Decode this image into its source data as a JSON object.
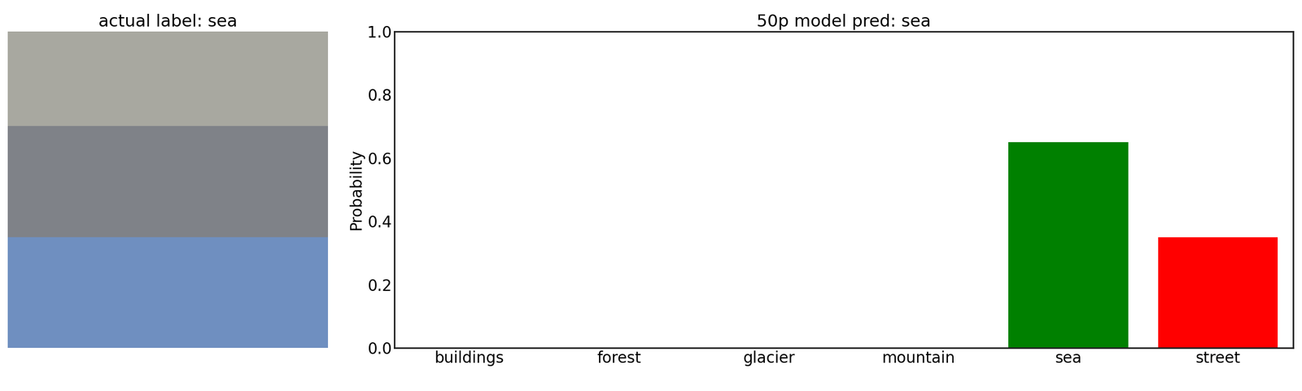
{
  "image_panel": {
    "title": "actual label: sea"
  },
  "chart_data": {
    "type": "bar",
    "title": "50p model pred: sea",
    "categories": [
      "buildings",
      "forest",
      "glacier",
      "mountain",
      "sea",
      "street"
    ],
    "values": [
      0,
      0,
      0,
      0,
      0.65,
      0.35
    ],
    "colors": [
      "#ffffff",
      "#ffffff",
      "#ffffff",
      "#ffffff",
      "#008000",
      "#ff0000"
    ],
    "ylabel": "Probability",
    "ylim": [
      0,
      1
    ],
    "yticks": [
      {
        "value": 0,
        "label": "0.0"
      },
      0.2,
      0.4,
      0.6,
      0.8,
      {
        "value": 1,
        "label": "1.0"
      }
    ],
    "grid": false
  }
}
